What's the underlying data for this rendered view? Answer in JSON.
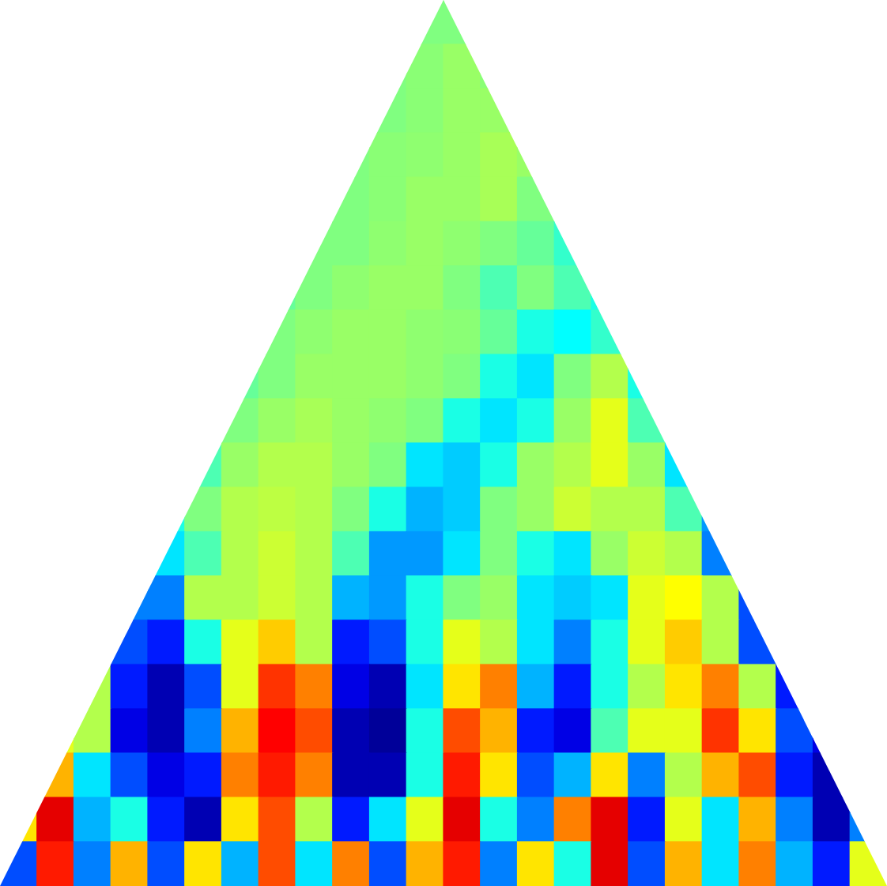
{
  "chart_data": {
    "type": "heatmap",
    "tick_labels": false,
    "xlim": [
      0,
      24
    ],
    "ylim": [
      0,
      20
    ],
    "color_range": [
      -1,
      1
    ],
    "cells": [
      [
        null,
        null,
        null,
        null,
        null,
        null,
        null,
        null,
        null,
        null,
        null,
        0,
        0,
        null,
        null,
        null,
        null,
        null,
        null,
        null,
        null,
        null,
        null,
        null
      ],
      [
        null,
        null,
        null,
        null,
        null,
        null,
        null,
        null,
        null,
        null,
        0,
        0.02,
        0.05,
        0.02,
        null,
        null,
        null,
        null,
        null,
        null,
        null,
        null,
        null,
        null
      ],
      [
        null,
        null,
        null,
        null,
        null,
        null,
        null,
        null,
        null,
        null,
        0,
        0.02,
        0.05,
        0.05,
        null,
        null,
        null,
        null,
        null,
        null,
        null,
        null,
        null,
        null
      ],
      [
        null,
        null,
        null,
        null,
        null,
        null,
        null,
        null,
        null,
        0,
        0.02,
        0.03,
        0.05,
        0.08,
        0.05,
        null,
        null,
        null,
        null,
        null,
        null,
        null,
        null,
        null
      ],
      [
        null,
        null,
        null,
        null,
        null,
        null,
        null,
        null,
        null,
        0,
        0.02,
        0.05,
        0.05,
        0.08,
        0,
        null,
        null,
        null,
        null,
        null,
        null,
        null,
        null,
        null
      ],
      [
        null,
        null,
        null,
        null,
        null,
        null,
        null,
        null,
        0,
        0,
        0.03,
        0.05,
        0.03,
        0,
        -0.05,
        -0.15,
        null,
        null,
        null,
        null,
        null,
        null,
        null,
        null
      ],
      [
        null,
        null,
        null,
        null,
        null,
        null,
        null,
        -0.05,
        0,
        0.03,
        0.05,
        0.05,
        0,
        -0.1,
        0,
        -0.1,
        -0.2,
        null,
        null,
        null,
        null,
        null,
        null,
        null
      ],
      [
        null,
        null,
        null,
        null,
        null,
        null,
        null,
        0,
        0.03,
        0.05,
        0.05,
        0.03,
        0.02,
        -0.05,
        -0.2,
        -0.25,
        -0.15,
        null,
        null,
        null,
        null,
        null,
        null,
        null
      ],
      [
        null,
        null,
        null,
        null,
        null,
        null,
        -0.05,
        0,
        0.05,
        0.05,
        0.05,
        0.03,
        0,
        -0.2,
        -0.3,
        0,
        0.1,
        -0.2,
        null,
        null,
        null,
        null,
        null,
        null
      ],
      [
        null,
        null,
        null,
        null,
        null,
        null,
        0,
        0.05,
        0.08,
        0.05,
        0.03,
        0,
        -0.2,
        -0.3,
        -0.2,
        0.05,
        0.2,
        -0.1,
        null,
        null,
        null,
        null,
        null,
        null
      ],
      [
        null,
        null,
        null,
        null,
        null,
        -0.1,
        0.05,
        0.1,
        0.1,
        0.05,
        0,
        -0.3,
        -0.35,
        -0.2,
        0.05,
        0.1,
        0.2,
        0.05,
        -0.3,
        null,
        null,
        null,
        null,
        null
      ],
      [
        null,
        null,
        null,
        null,
        -0.2,
        0,
        0.1,
        0.12,
        0.1,
        0,
        -0.2,
        -0.4,
        -0.35,
        0,
        0.05,
        0.15,
        0.1,
        0.1,
        -0.1,
        -0.45,
        null,
        null,
        null,
        null
      ],
      [
        null,
        null,
        null,
        null,
        -0.3,
        -0.1,
        0.1,
        0.15,
        0.1,
        -0.1,
        -0.45,
        -0.45,
        -0.3,
        0,
        -0.2,
        -0.3,
        0.05,
        0.15,
        0.1,
        -0.5,
        null,
        null,
        null,
        null
      ],
      [
        null,
        null,
        null,
        -0.5,
        -0.5,
        0.1,
        0.1,
        0.15,
        0.1,
        -0.4,
        -0.45,
        -0.2,
        0,
        0.05,
        -0.3,
        -0.35,
        -0.3,
        0.2,
        0.25,
        0.1,
        -0.6,
        null,
        null,
        null
      ],
      [
        null,
        null,
        null,
        -0.6,
        -0.7,
        -0.2,
        0.2,
        0.35,
        0.1,
        -0.7,
        -0.6,
        -0.2,
        0.2,
        0.1,
        -0.3,
        -0.5,
        -0.2,
        0.2,
        0.35,
        0.1,
        -0.6,
        null,
        null,
        null
      ],
      [
        null,
        null,
        0.1,
        -0.7,
        -0.9,
        -0.6,
        0.2,
        0.65,
        0.5,
        -0.8,
        -0.9,
        -0.3,
        0.3,
        0.5,
        -0.4,
        -0.7,
        -0.2,
        0.1,
        0.3,
        0.5,
        0.1,
        -0.7,
        null,
        null
      ],
      [
        null,
        0.2,
        0.1,
        -0.8,
        -0.9,
        -0.5,
        0.4,
        0.75,
        0.6,
        -0.9,
        -0.95,
        -0.2,
        0.6,
        0.4,
        -0.7,
        -0.8,
        -0.1,
        0.2,
        0.2,
        0.65,
        0.3,
        -0.6,
        -0.8,
        null
      ],
      [
        null,
        0.4,
        -0.3,
        -0.6,
        -0.8,
        -0.7,
        0.5,
        0.7,
        0.5,
        -0.9,
        -0.9,
        -0.2,
        0.7,
        0.3,
        -0.6,
        -0.4,
        0.3,
        -0.5,
        0.1,
        0.4,
        0.6,
        -0.7,
        -0.9,
        null
      ],
      [
        0.3,
        0.8,
        -0.4,
        -0.2,
        -0.7,
        -0.9,
        0.3,
        0.6,
        0.1,
        -0.7,
        -0.3,
        0.2,
        0.8,
        -0.2,
        -0.5,
        0.5,
        0.8,
        -0.7,
        0.2,
        -0.3,
        0.4,
        -0.5,
        -0.9,
        -0.5
      ],
      [
        -0.6,
        0.7,
        -0.5,
        0.4,
        -0.6,
        0.3,
        -0.4,
        0.6,
        -0.3,
        0.5,
        -0.6,
        0.4,
        0.7,
        -0.5,
        0.3,
        -0.2,
        0.8,
        -0.6,
        0.4,
        -0.3,
        0.5,
        -0.4,
        -0.7,
        0.2
      ]
    ]
  }
}
